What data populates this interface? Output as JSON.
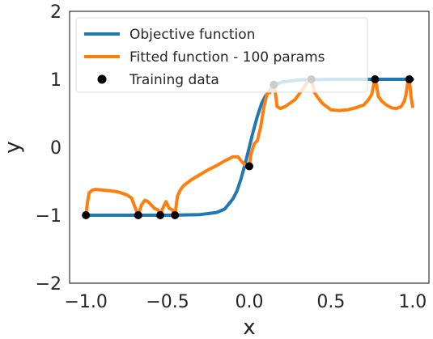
{
  "chart_data": {
    "type": "line",
    "xlabel": "x",
    "ylabel": "y",
    "xlim": [
      -1.1,
      1.1
    ],
    "ylim": [
      -2,
      2
    ],
    "xticks": [
      -1.0,
      -0.5,
      0.0,
      0.5,
      1.0
    ],
    "yticks": [
      -2,
      -1,
      0,
      1,
      2
    ],
    "xtick_labels": [
      "−1.0",
      "−0.5",
      "0.0",
      "0.5",
      "1.0"
    ],
    "ytick_labels": [
      "−2",
      "−1",
      "0",
      "1",
      "2"
    ],
    "grid": false,
    "legend_position": "top-left",
    "legend": [
      "Objective function",
      "Fitted function - 100 params",
      "Training data"
    ],
    "colors": {
      "objective": "#1f77b4",
      "fitted": "#ff7f0e",
      "training": "#000000",
      "legend_box": "#dddddd"
    },
    "series": [
      {
        "name": "Objective function",
        "x": [
          -1.0,
          -0.5,
          -0.3,
          -0.2,
          -0.15,
          -0.1,
          -0.075,
          -0.05,
          -0.025,
          0.0,
          0.025,
          0.05,
          0.075,
          0.1,
          0.15,
          0.2,
          0.3,
          0.5,
          1.0
        ],
        "y": [
          -1.0,
          -1.0,
          -0.99,
          -0.96,
          -0.91,
          -0.76,
          -0.64,
          -0.46,
          -0.24,
          0.0,
          0.24,
          0.46,
          0.64,
          0.76,
          0.91,
          0.96,
          0.99,
          1.0,
          1.0
        ]
      },
      {
        "name": "Fitted function - 100 params",
        "x": [
          -1.0,
          -0.99,
          -0.98,
          -0.96,
          -0.94,
          -0.9,
          -0.85,
          -0.8,
          -0.75,
          -0.72,
          -0.7,
          -0.68,
          -0.66,
          -0.64,
          -0.62,
          -0.6,
          -0.58,
          -0.56,
          -0.545,
          -0.53,
          -0.51,
          -0.49,
          -0.47,
          -0.455,
          -0.44,
          -0.42,
          -0.4,
          -0.35,
          -0.3,
          -0.25,
          -0.2,
          -0.15,
          -0.1,
          -0.07,
          -0.05,
          -0.03,
          -0.015,
          0.0,
          0.01,
          0.03,
          0.05,
          0.07,
          0.09,
          0.11,
          0.125,
          0.14,
          0.15,
          0.16,
          0.17,
          0.19,
          0.22,
          0.25,
          0.28,
          0.31,
          0.34,
          0.36,
          0.37,
          0.38,
          0.39,
          0.4,
          0.42,
          0.45,
          0.5,
          0.55,
          0.6,
          0.65,
          0.7,
          0.73,
          0.75,
          0.76,
          0.77,
          0.78,
          0.79,
          0.81,
          0.84,
          0.87,
          0.9,
          0.93,
          0.95,
          0.96,
          0.97,
          0.98,
          0.99,
          1.0
        ],
        "y": [
          -1.0,
          -0.8,
          -0.67,
          -0.63,
          -0.62,
          -0.63,
          -0.64,
          -0.66,
          -0.7,
          -0.75,
          -0.88,
          -1.0,
          -0.85,
          -0.78,
          -0.8,
          -0.85,
          -0.9,
          -0.92,
          -1.0,
          -0.9,
          -0.8,
          -0.9,
          -0.92,
          -1.0,
          -0.72,
          -0.62,
          -0.56,
          -0.47,
          -0.4,
          -0.33,
          -0.27,
          -0.2,
          -0.14,
          -0.14,
          -0.2,
          -0.25,
          -0.27,
          -0.28,
          -0.1,
          0.05,
          0.1,
          0.3,
          0.6,
          0.8,
          0.8,
          0.86,
          0.95,
          0.8,
          0.6,
          0.57,
          0.6,
          0.65,
          0.7,
          0.8,
          0.9,
          0.98,
          1.0,
          1.0,
          0.9,
          0.8,
          0.73,
          0.64,
          0.55,
          0.54,
          0.55,
          0.58,
          0.62,
          0.7,
          0.78,
          0.9,
          1.0,
          0.9,
          0.75,
          0.68,
          0.62,
          0.58,
          0.57,
          0.6,
          0.68,
          0.78,
          0.95,
          1.0,
          0.75,
          0.6
        ]
      },
      {
        "name": "Training data",
        "x": [
          -1.0,
          -0.68,
          -0.545,
          -0.455,
          0.0,
          0.15,
          0.38,
          0.77,
          0.98
        ],
        "y": [
          -1.0,
          -1.0,
          -1.0,
          -1.0,
          -0.28,
          0.92,
          1.0,
          1.0,
          1.0
        ]
      }
    ]
  }
}
